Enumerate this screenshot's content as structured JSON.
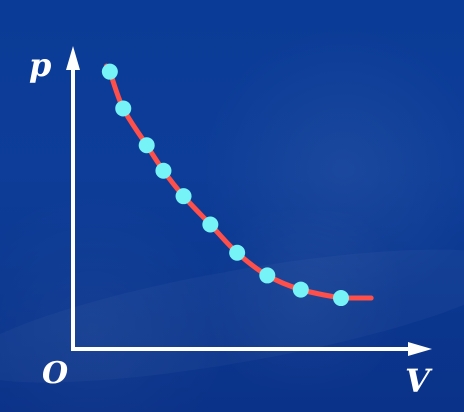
{
  "chart_data": {
    "type": "line",
    "title": "",
    "xlabel": "V",
    "ylabel": "p",
    "origin_label": "O",
    "xlim": [
      0,
      1
    ],
    "ylim": [
      0,
      1
    ],
    "grid": false,
    "legend": "none",
    "series": [
      {
        "values": [
          [
            0.11,
            0.98
          ],
          [
            0.15,
            0.85
          ],
          [
            0.22,
            0.72
          ],
          [
            0.27,
            0.63
          ],
          [
            0.33,
            0.54
          ],
          [
            0.41,
            0.44
          ],
          [
            0.49,
            0.34
          ],
          [
            0.58,
            0.26
          ],
          [
            0.68,
            0.21
          ],
          [
            0.8,
            0.18
          ]
        ]
      }
    ],
    "colors": {
      "background": "#0b3a93",
      "axis": "#ffffff",
      "curve": "#ff4f4a",
      "points": "#76f3f6"
    }
  }
}
